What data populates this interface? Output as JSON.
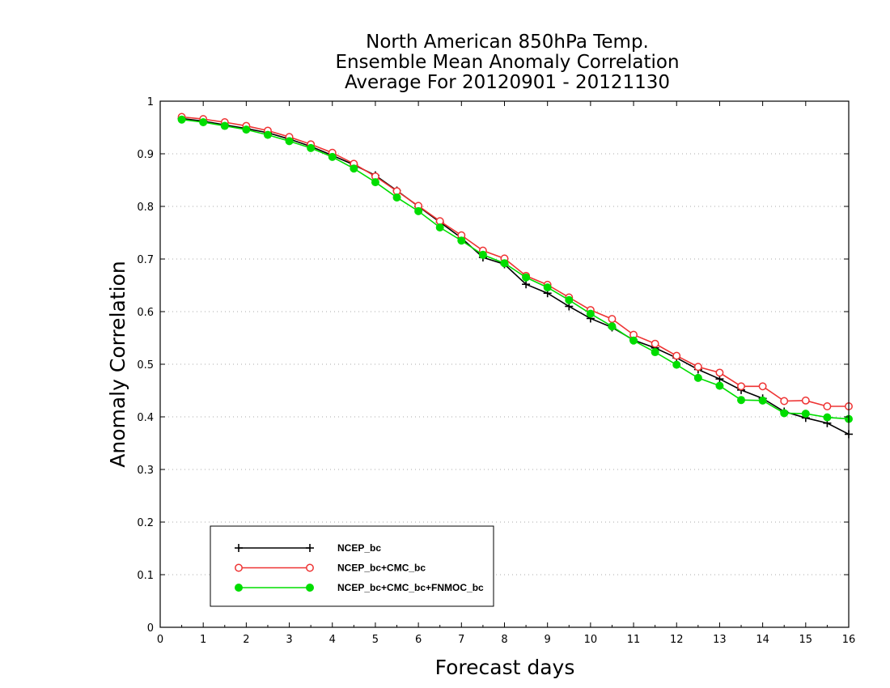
{
  "chart_data": {
    "type": "line",
    "title": [
      "North American 850hPa Temp.",
      "Ensemble Mean Anomaly Correlation",
      "Average For 20120901 - 20121130"
    ],
    "xlabel": "Forecast days",
    "ylabel": "Anomaly Correlation",
    "xlim": [
      0,
      16
    ],
    "ylim": [
      0,
      1
    ],
    "xticks": [
      0,
      1,
      2,
      3,
      4,
      5,
      6,
      7,
      8,
      9,
      10,
      11,
      12,
      13,
      14,
      15,
      16
    ],
    "yticks": [
      0,
      0.1,
      0.2,
      0.3,
      0.4,
      0.5,
      0.6,
      0.7,
      0.8,
      0.9,
      1
    ],
    "ytick_labels": [
      "0",
      "0.1",
      "0.2",
      "0.3",
      "0.4",
      "0.5",
      "0.6",
      "0.7",
      "0.8",
      "0.9",
      "1"
    ],
    "grid": "horizontal-dotted",
    "legend_position": "lower-left",
    "x": [
      0.5,
      1,
      1.5,
      2,
      2.5,
      3,
      3.5,
      4,
      4.5,
      5,
      5.5,
      6,
      6.5,
      7,
      7.5,
      8,
      8.5,
      9,
      9.5,
      10,
      10.5,
      11,
      11.5,
      12,
      12.5,
      13,
      13.5,
      14,
      14.5,
      15,
      15.5,
      16
    ],
    "series": [
      {
        "name": "NCEP_bc",
        "color": "#000000",
        "marker": "plus",
        "values": [
          0.967,
          0.962,
          0.955,
          0.948,
          0.94,
          0.928,
          0.914,
          0.897,
          0.879,
          0.859,
          0.83,
          0.8,
          0.77,
          0.74,
          0.703,
          0.69,
          0.652,
          0.635,
          0.61,
          0.587,
          0.57,
          0.546,
          0.531,
          0.512,
          0.49,
          0.472,
          0.451,
          0.435,
          0.41,
          0.398,
          0.388,
          0.367
        ]
      },
      {
        "name": "NCEP_bc+CMC_bc",
        "color": "#ee3333",
        "marker": "open-circle",
        "values": [
          0.97,
          0.966,
          0.96,
          0.953,
          0.944,
          0.932,
          0.918,
          0.902,
          0.881,
          0.857,
          0.829,
          0.801,
          0.772,
          0.745,
          0.716,
          0.701,
          0.668,
          0.651,
          0.627,
          0.603,
          0.586,
          0.556,
          0.539,
          0.516,
          0.495,
          0.484,
          0.458,
          0.458,
          0.43,
          0.431,
          0.42,
          0.42
        ]
      },
      {
        "name": "NCEP_bc+CMC_bc+FNMOC_bc",
        "color": "#00dd00",
        "marker": "filled-circle",
        "values": [
          0.965,
          0.96,
          0.953,
          0.946,
          0.936,
          0.924,
          0.911,
          0.894,
          0.872,
          0.846,
          0.817,
          0.791,
          0.76,
          0.735,
          0.708,
          0.692,
          0.665,
          0.646,
          0.622,
          0.596,
          0.572,
          0.545,
          0.523,
          0.499,
          0.474,
          0.459,
          0.432,
          0.431,
          0.407,
          0.406,
          0.399,
          0.396
        ]
      }
    ]
  }
}
